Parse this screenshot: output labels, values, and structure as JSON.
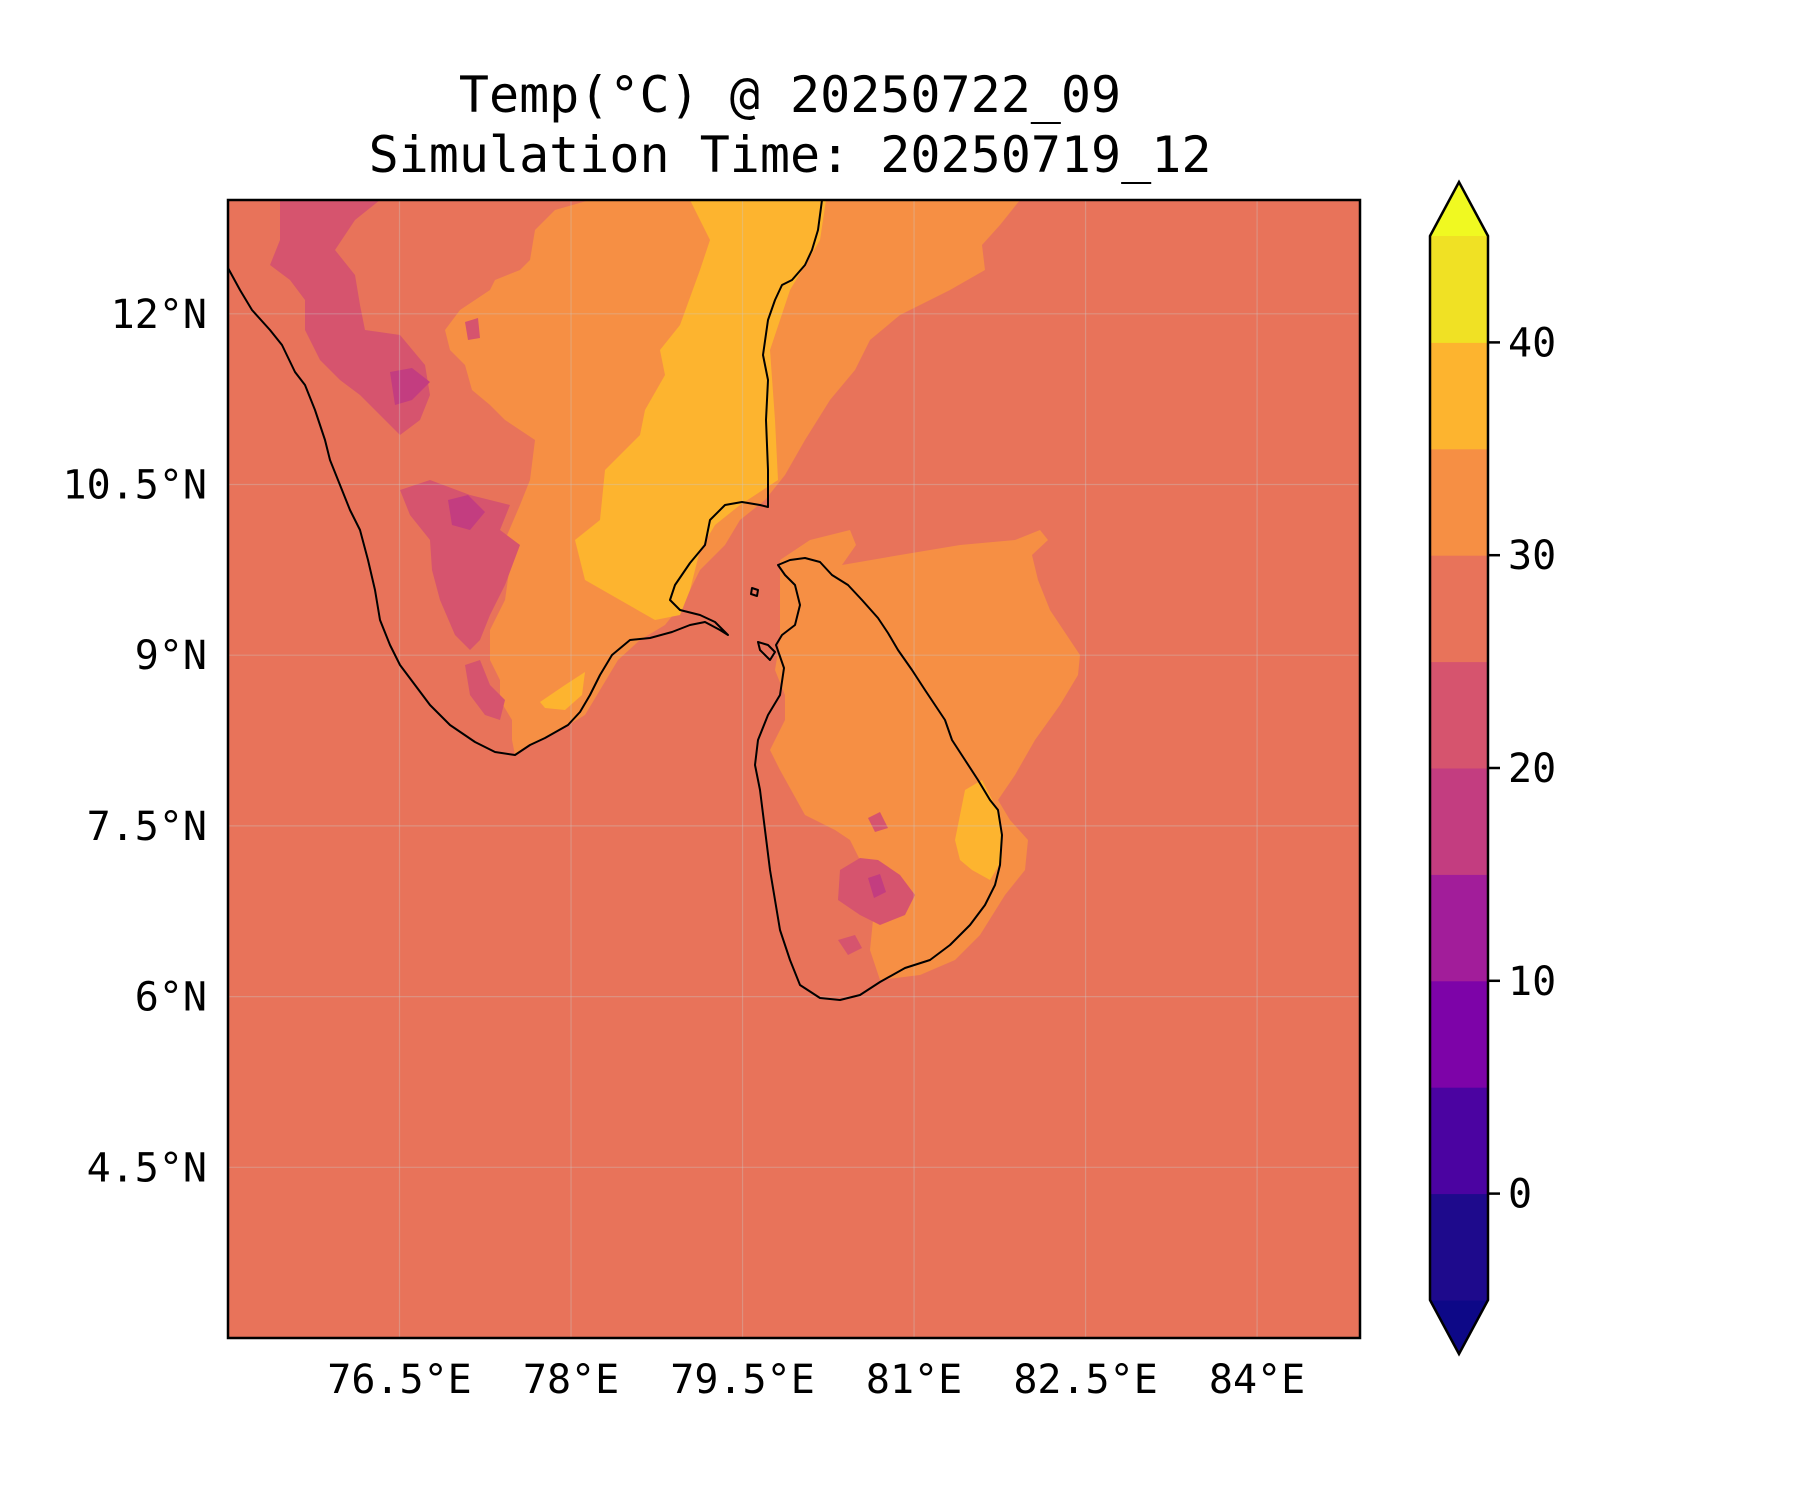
{
  "map": {
    "title_line1": "Temp(°C) @ 20250722_09",
    "title_line2": "Simulation Time: 20250719_12",
    "extent": {
      "lon": [
        75.0,
        84.9
      ],
      "lat": [
        3.0,
        13.0
      ]
    },
    "lon_ticks": [
      {
        "value": 76.5,
        "label": "76.5°E"
      },
      {
        "value": 78.0,
        "label": "78°E"
      },
      {
        "value": 79.5,
        "label": "79.5°E"
      },
      {
        "value": 81.0,
        "label": "81°E"
      },
      {
        "value": 82.5,
        "label": "82.5°E"
      },
      {
        "value": 84.0,
        "label": "84°E"
      }
    ],
    "lat_ticks": [
      {
        "value": 12.0,
        "label": "12°N"
      },
      {
        "value": 10.5,
        "label": "10.5°N"
      },
      {
        "value": 9.0,
        "label": "9°N"
      },
      {
        "value": 7.5,
        "label": "7.5°N"
      },
      {
        "value": 6.0,
        "label": "6°N"
      },
      {
        "value": 4.5,
        "label": "4.5°N"
      }
    ],
    "gridlines": true,
    "background_level_color": "#e8735a"
  },
  "colorbar": {
    "extend": "both",
    "min": -5,
    "max": 45,
    "levels": [
      {
        "from": -5,
        "to": 0,
        "color": "#1e0a8c"
      },
      {
        "from": 0,
        "to": 5,
        "color": "#4b03a1"
      },
      {
        "from": 5,
        "to": 10,
        "color": "#7d03a8"
      },
      {
        "from": 10,
        "to": 15,
        "color": "#a21d9a"
      },
      {
        "from": 15,
        "to": 20,
        "color": "#c33d80"
      },
      {
        "from": 20,
        "to": 25,
        "color": "#d6546e"
      },
      {
        "from": 25,
        "to": 30,
        "color": "#e8735a"
      },
      {
        "from": 30,
        "to": 35,
        "color": "#f68f44"
      },
      {
        "from": 35,
        "to": 40,
        "color": "#fdb42f"
      },
      {
        "from": 40,
        "to": 45,
        "color": "#f0e124"
      }
    ],
    "under_color": "#0d0887",
    "over_color": "#f0f921",
    "ticks": [
      {
        "value": 0,
        "label": "0"
      },
      {
        "value": 10,
        "label": "10"
      },
      {
        "value": 20,
        "label": "20"
      },
      {
        "value": 30,
        "label": "30"
      },
      {
        "value": 40,
        "label": "40"
      }
    ]
  }
}
